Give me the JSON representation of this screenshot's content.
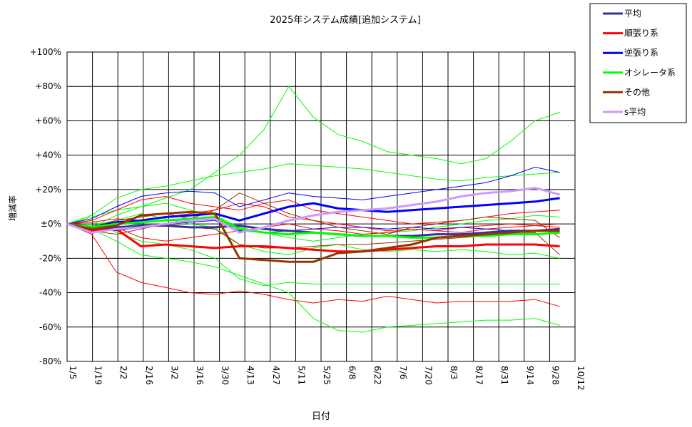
{
  "chart_data": {
    "type": "line",
    "title": "2025年システム成績[追加システム]",
    "xlabel": "日付",
    "ylabel": "増減率",
    "y_ticks": [
      "+100%",
      "+80%",
      "+60%",
      "+40%",
      "+20%",
      "±0%",
      "-20%",
      "-40%",
      "-60%",
      "-80%"
    ],
    "ylim": [
      -80,
      100
    ],
    "x_ticks": [
      "1/5",
      "1/19",
      "2/2",
      "2/16",
      "3/2",
      "3/16",
      "3/30",
      "4/13",
      "4/27",
      "5/11",
      "5/25",
      "6/8",
      "6/22",
      "7/6",
      "7/20",
      "8/3",
      "8/17",
      "8/31",
      "9/14",
      "9/28",
      "10/12"
    ],
    "grid": true,
    "legend_position": "right",
    "series": [
      {
        "name": "平均",
        "color": "#333399",
        "width": 3,
        "values": [
          0,
          -3,
          -2,
          -1,
          -1,
          -2,
          -2,
          -1,
          -3,
          -4,
          -5,
          -6,
          -7,
          -7,
          -7,
          -6,
          -6,
          -5,
          -4,
          -4,
          -3
        ]
      },
      {
        "name": "順張り系",
        "color": "#ff0000",
        "width": 3,
        "values": [
          0,
          -4,
          -3,
          -13,
          -12,
          -13,
          -14,
          -13,
          -13,
          -14,
          -15,
          -16,
          -16,
          -15,
          -14,
          -13,
          -13,
          -12,
          -12,
          -12,
          -13
        ]
      },
      {
        "name": "逆張り系",
        "color": "#0000ff",
        "width": 3,
        "values": [
          0,
          -2,
          1,
          2,
          4,
          5,
          6,
          2,
          6,
          10,
          12,
          9,
          8,
          7,
          8,
          9,
          10,
          11,
          12,
          13,
          15
        ]
      },
      {
        "name": "オシレータ系",
        "color": "#00ff00",
        "width": 3,
        "values": [
          0,
          -2,
          0,
          1,
          2,
          3,
          4,
          -3,
          -5,
          -6,
          -5,
          -6,
          -7,
          -7,
          -8,
          -8,
          -7,
          -7,
          -6,
          -6,
          -5
        ]
      },
      {
        "name": "その他",
        "color": "#993300",
        "width": 3,
        "values": [
          0,
          -3,
          -1,
          5,
          6,
          7,
          6,
          -20,
          -21,
          -22,
          -22,
          -17,
          -16,
          -14,
          -12,
          -8,
          -7,
          -6,
          -5,
          -4,
          -4
        ]
      },
      {
        "name": "s平均",
        "color": "#cc99ff",
        "width": 3,
        "values": [
          0,
          -5,
          -3,
          -2,
          0,
          2,
          3,
          -5,
          -2,
          2,
          5,
          7,
          8,
          9,
          11,
          13,
          16,
          18,
          19,
          21,
          17
        ]
      }
    ],
    "thin_series": [
      {
        "color": "#00ff00",
        "values": [
          0,
          -2,
          5,
          10,
          15,
          20,
          30,
          40,
          55,
          80,
          62,
          52,
          48,
          42,
          40,
          38,
          35,
          38,
          48,
          60,
          65
        ]
      },
      {
        "color": "#00ff00",
        "values": [
          0,
          5,
          15,
          20,
          22,
          25,
          28,
          30,
          32,
          35,
          34,
          33,
          32,
          30,
          28,
          26,
          25,
          27,
          28,
          29,
          30
        ]
      },
      {
        "color": "#00ff00",
        "values": [
          0,
          -3,
          -10,
          -18,
          -20,
          -22,
          -25,
          -30,
          -35,
          -40,
          -55,
          -62,
          -63,
          -60,
          -59,
          -58,
          -57,
          -56,
          -56,
          -55,
          -59
        ]
      },
      {
        "color": "#00ff00",
        "values": [
          0,
          2,
          -5,
          -10,
          -12,
          -15,
          -20,
          -32,
          -36,
          -34,
          -35,
          -35,
          -35,
          -35,
          -35,
          -35,
          -35,
          -35,
          -35,
          -35,
          -35
        ]
      },
      {
        "color": "#00ff00",
        "values": [
          0,
          4,
          8,
          10,
          12,
          8,
          5,
          -2,
          -5,
          -8,
          -10,
          -8,
          -6,
          -5,
          -4,
          -2,
          0,
          2,
          3,
          5,
          4
        ]
      },
      {
        "color": "#00ff00",
        "values": [
          0,
          -1,
          2,
          6,
          3,
          0,
          -2,
          -12,
          -16,
          -18,
          -14,
          -12,
          -15,
          -16,
          -15,
          -16,
          -15,
          -16,
          -18,
          -17,
          -20
        ]
      },
      {
        "color": "#ff0000",
        "values": [
          0,
          -6,
          -28,
          -34,
          -37,
          -40,
          -41,
          -39,
          -41,
          -44,
          -46,
          -44,
          -45,
          -42,
          -44,
          -46,
          -45,
          -45,
          -45,
          -44,
          -48
        ]
      },
      {
        "color": "#ff0000",
        "values": [
          0,
          2,
          8,
          14,
          16,
          12,
          10,
          8,
          12,
          14,
          8,
          6,
          4,
          2,
          0,
          1,
          2,
          4,
          6,
          7,
          8
        ]
      },
      {
        "color": "#ff0000",
        "values": [
          0,
          -3,
          -2,
          -8,
          -10,
          -8,
          -6,
          -4,
          -2,
          0,
          -3,
          -4,
          -6,
          -5,
          -3,
          -4,
          -2,
          -1,
          0,
          -1,
          -2
        ]
      },
      {
        "color": "#ff0000",
        "values": [
          0,
          1,
          3,
          2,
          4,
          6,
          8,
          12,
          10,
          4,
          2,
          0,
          -2,
          -4,
          -3,
          -4,
          -5,
          -3,
          -2,
          -1,
          0
        ]
      },
      {
        "color": "#0000ff",
        "values": [
          0,
          3,
          10,
          16,
          18,
          19,
          18,
          10,
          14,
          18,
          16,
          15,
          14,
          16,
          18,
          20,
          22,
          24,
          28,
          33,
          30
        ]
      },
      {
        "color": "#0000ff",
        "values": [
          0,
          -2,
          -4,
          -2,
          0,
          1,
          2,
          -4,
          -5,
          -4,
          -3,
          -2,
          -2,
          -3,
          -2,
          -3,
          -2,
          -3,
          -4,
          -4,
          -4
        ]
      },
      {
        "color": "#993300",
        "values": [
          0,
          -2,
          2,
          4,
          6,
          3,
          8,
          18,
          12,
          6,
          2,
          -2,
          -4,
          -6,
          -2,
          0,
          2,
          4,
          3,
          2,
          -8
        ]
      },
      {
        "color": "#993300",
        "values": [
          0,
          -4,
          -6,
          -3,
          0,
          -2,
          -3,
          -12,
          -14,
          -14,
          -13,
          -12,
          -12,
          -11,
          -10,
          -9,
          -8,
          -7,
          -6,
          -5,
          -18
        ]
      }
    ]
  }
}
